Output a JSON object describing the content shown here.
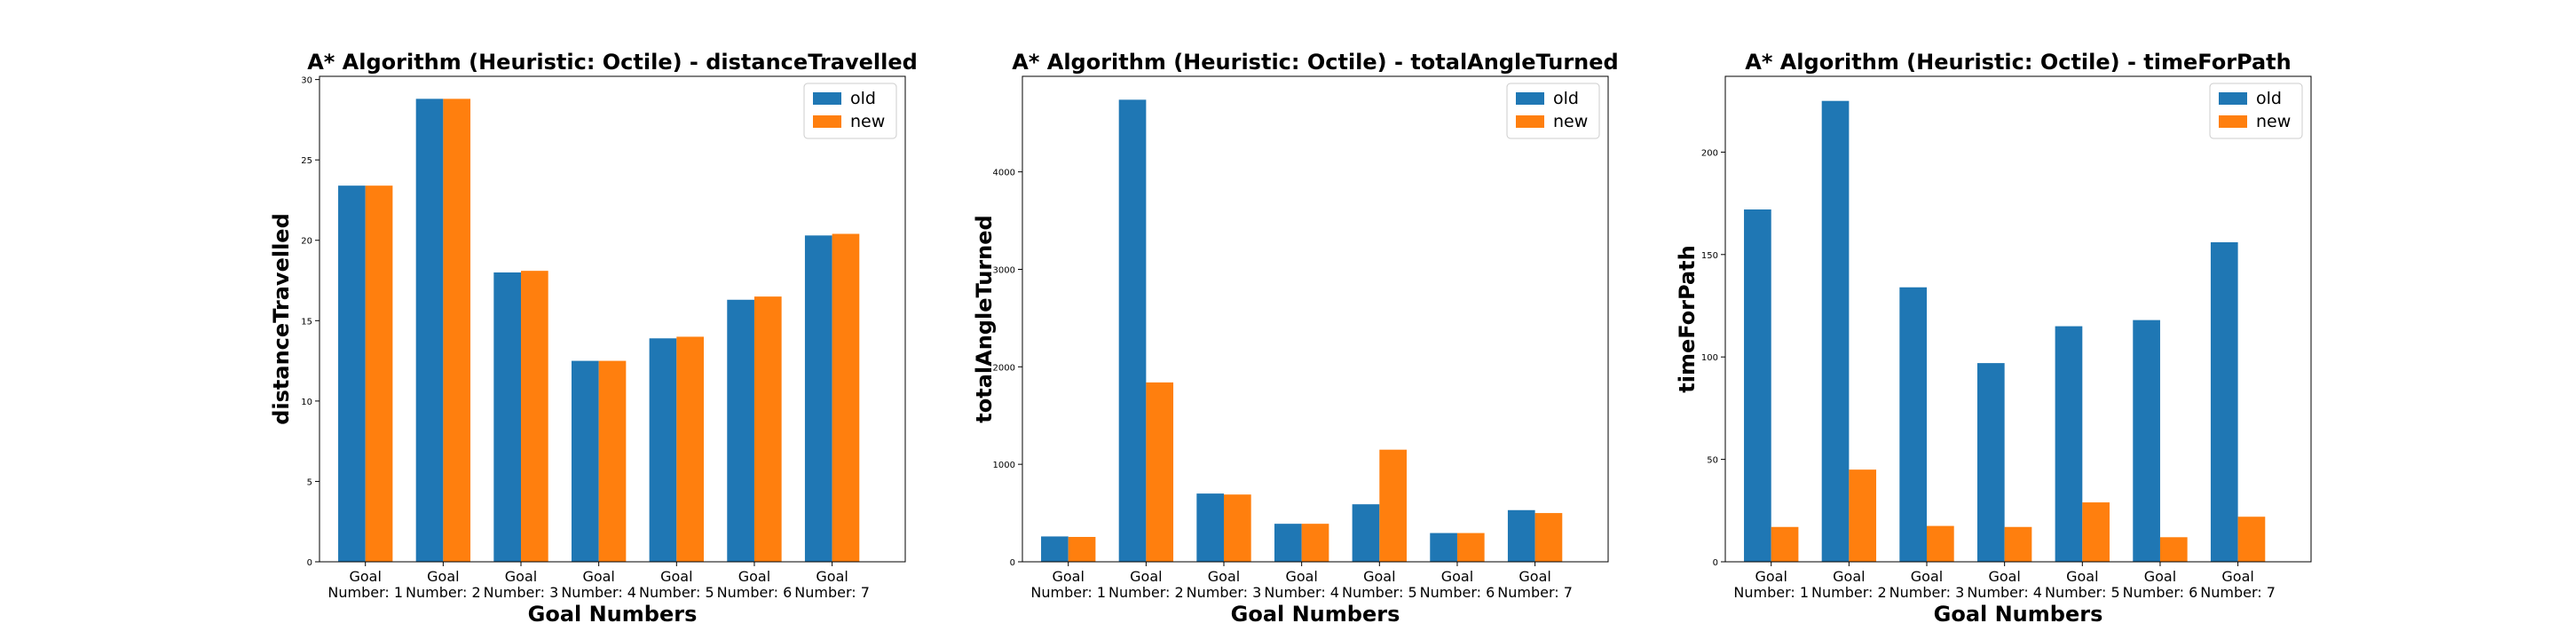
{
  "chart_data": [
    {
      "type": "bar",
      "title": "A* Algorithm (Heuristic: Octile) - distanceTravelled",
      "xlabel": "Goal Numbers",
      "ylabel": "distanceTravelled",
      "categories": [
        [
          "Goal",
          "Number: 1"
        ],
        [
          "Goal",
          "Number: 2"
        ],
        [
          "Goal",
          "Number: 3"
        ],
        [
          "Goal",
          "Number: 4"
        ],
        [
          "Goal",
          "Number: 5"
        ],
        [
          "Goal",
          "Number: 6"
        ],
        [
          "Goal",
          "Number: 7"
        ]
      ],
      "ylim": [
        0,
        30.2
      ],
      "yticks": [
        0,
        5,
        10,
        15,
        20,
        25,
        30
      ],
      "series": [
        {
          "name": "old",
          "color": "#1f77b4",
          "values": [
            23.4,
            28.8,
            18.0,
            12.5,
            13.9,
            16.3,
            20.3
          ]
        },
        {
          "name": "new",
          "color": "#ff7f0e",
          "values": [
            23.4,
            28.8,
            18.1,
            12.5,
            14.0,
            16.5,
            20.4
          ]
        }
      ],
      "legend": "top-right",
      "grid": false
    },
    {
      "type": "bar",
      "title": "A* Algorithm (Heuristic: Octile) - totalAngleTurned",
      "xlabel": "Goal Numbers",
      "ylabel": "totalAngleTurned",
      "categories": [
        [
          "Goal",
          "Number: 1"
        ],
        [
          "Goal",
          "Number: 2"
        ],
        [
          "Goal",
          "Number: 3"
        ],
        [
          "Goal",
          "Number: 4"
        ],
        [
          "Goal",
          "Number: 5"
        ],
        [
          "Goal",
          "Number: 6"
        ],
        [
          "Goal",
          "Number: 7"
        ]
      ],
      "ylim": [
        0,
        4980
      ],
      "yticks": [
        0,
        1000,
        2000,
        3000,
        4000
      ],
      "series": [
        {
          "name": "old",
          "color": "#1f77b4",
          "values": [
            260,
            4740,
            700,
            390,
            590,
            295,
            530
          ]
        },
        {
          "name": "new",
          "color": "#ff7f0e",
          "values": [
            255,
            1840,
            690,
            390,
            1150,
            295,
            500
          ]
        }
      ],
      "legend": "top-right",
      "grid": false
    },
    {
      "type": "bar",
      "title": "A* Algorithm (Heuristic: Octile) - timeForPath",
      "xlabel": "Goal Numbers",
      "ylabel": "timeForPath",
      "categories": [
        [
          "Goal",
          "Number: 1"
        ],
        [
          "Goal",
          "Number: 2"
        ],
        [
          "Goal",
          "Number: 3"
        ],
        [
          "Goal",
          "Number: 4"
        ],
        [
          "Goal",
          "Number: 5"
        ],
        [
          "Goal",
          "Number: 6"
        ],
        [
          "Goal",
          "Number: 7"
        ]
      ],
      "ylim": [
        0,
        237
      ],
      "yticks": [
        0,
        50,
        100,
        150,
        200
      ],
      "series": [
        {
          "name": "old",
          "color": "#1f77b4",
          "values": [
            172,
            225,
            134,
            97,
            115,
            118,
            156
          ]
        },
        {
          "name": "new",
          "color": "#ff7f0e",
          "values": [
            17,
            45,
            17.5,
            17,
            29,
            12,
            22
          ]
        }
      ],
      "legend": "top-right",
      "grid": false
    }
  ]
}
